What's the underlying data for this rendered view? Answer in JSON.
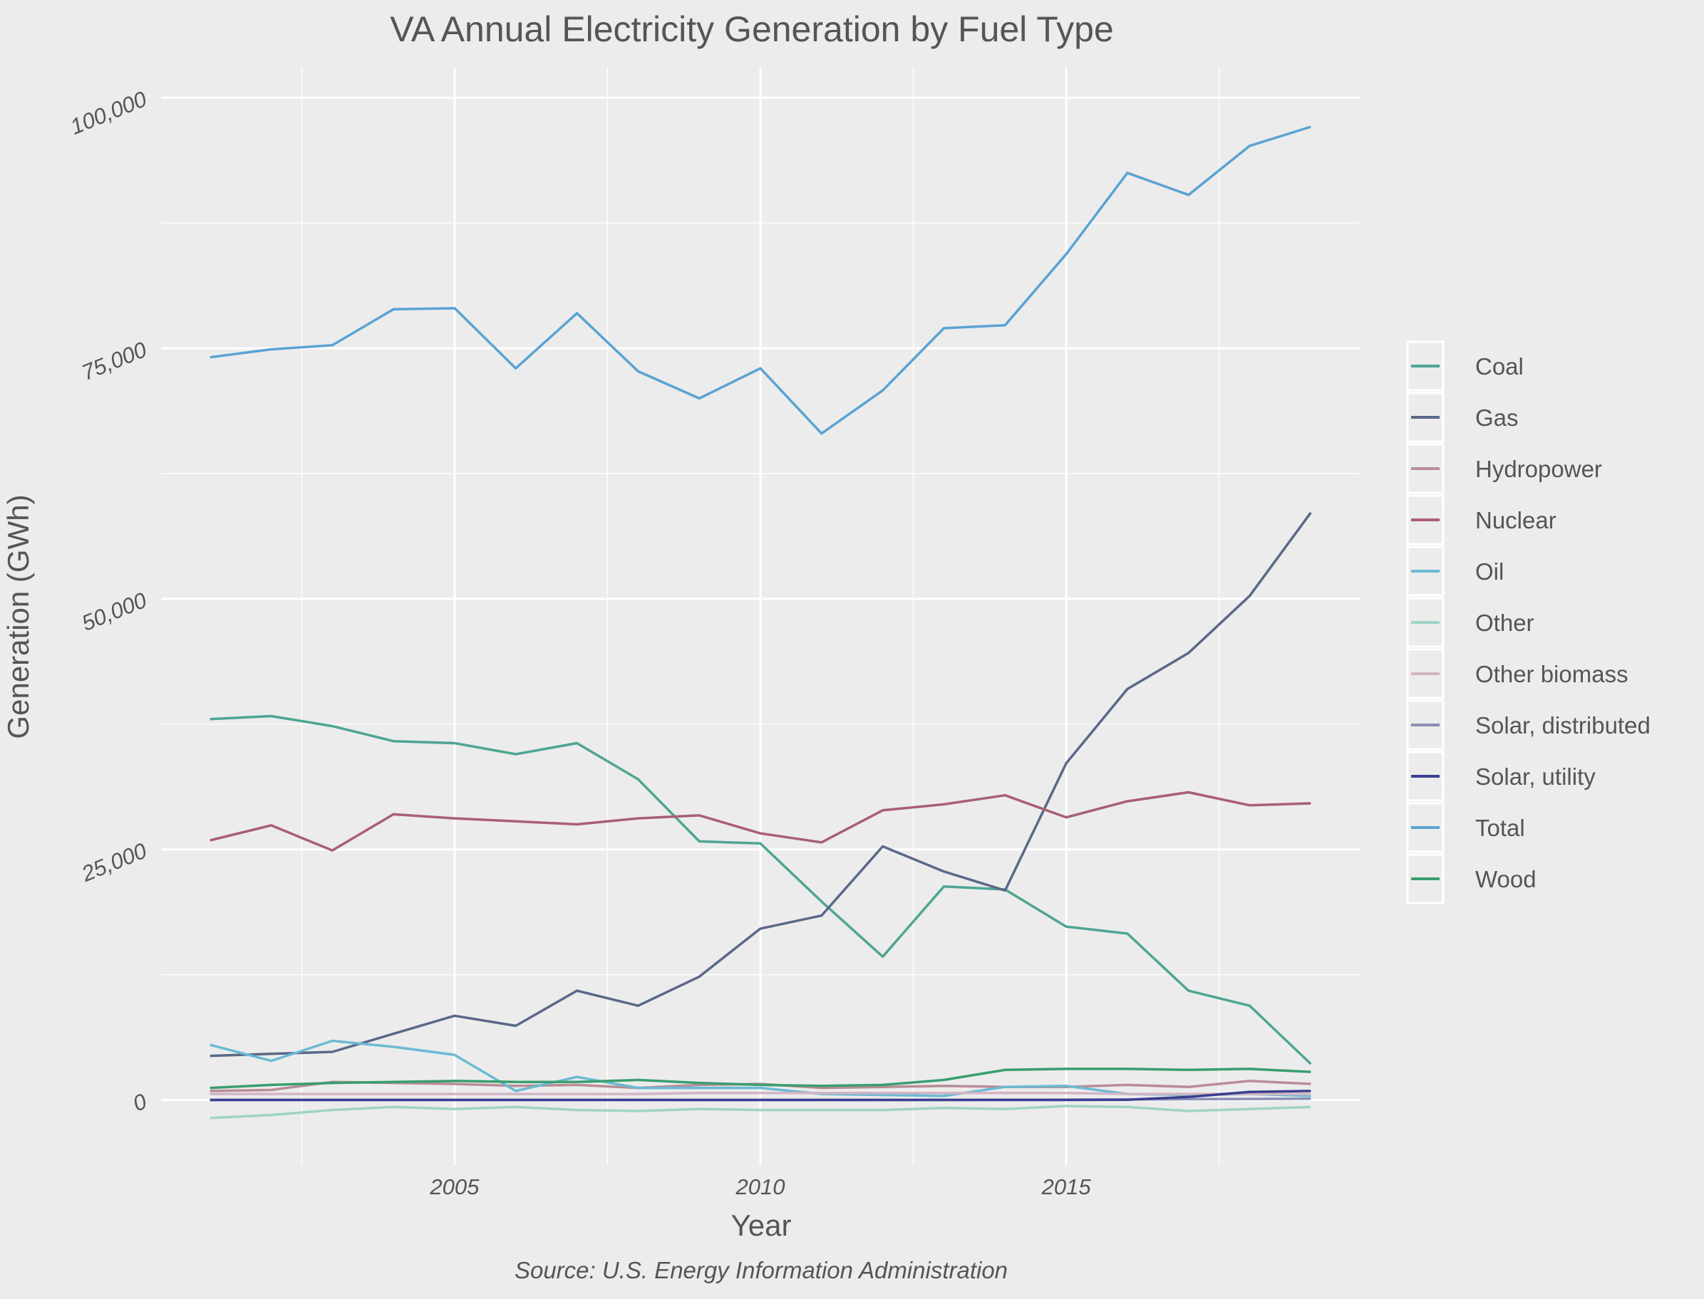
{
  "chart_data": {
    "type": "line",
    "title": "VA Annual Electricity Generation by Fuel Type",
    "xlabel": "Year",
    "ylabel": "Generation (GWh)",
    "caption": "Source: U.S. Energy Information Administration",
    "xlim": [
      2000.2,
      2019.8
    ],
    "ylim": [
      -6500,
      103000
    ],
    "x_ticks": [
      2005,
      2010,
      2015
    ],
    "y_ticks": [
      0,
      25000,
      50000,
      75000,
      100000
    ],
    "y_tick_labels": [
      "0",
      "25,000",
      "50,000",
      "75,000",
      "100,000"
    ],
    "grid": true,
    "legend_position": "right",
    "x": [
      2001,
      2002,
      2003,
      2004,
      2005,
      2006,
      2007,
      2008,
      2009,
      2010,
      2011,
      2012,
      2013,
      2014,
      2015,
      2016,
      2017,
      2018,
      2019
    ],
    "series": [
      {
        "name": "Coal",
        "color": "#4fa593",
        "values": [
          38000,
          38300,
          37300,
          35800,
          35600,
          34500,
          35600,
          32000,
          25800,
          25600,
          19800,
          14300,
          21300,
          21000,
          17300,
          16600,
          10900,
          9400,
          3600
        ]
      },
      {
        "name": "Gas",
        "color": "#5a6888",
        "values": [
          4400,
          4600,
          4800,
          6600,
          8400,
          7400,
          10900,
          9400,
          12300,
          17100,
          18400,
          25300,
          22800,
          20900,
          33600,
          41000,
          44600,
          50300,
          58600
        ]
      },
      {
        "name": "Hydropower",
        "color": "#b88d96",
        "values": [
          900,
          1000,
          1800,
          1700,
          1600,
          1400,
          1500,
          1200,
          1500,
          1600,
          1200,
          1300,
          1400,
          1300,
          1300,
          1500,
          1300,
          1900,
          1600
        ]
      },
      {
        "name": "Nuclear",
        "color": "#a85f72",
        "values": [
          25900,
          27400,
          24900,
          28500,
          28100,
          27800,
          27500,
          28100,
          28400,
          26600,
          25700,
          28900,
          29500,
          30400,
          28200,
          29800,
          30700,
          29400,
          29600
        ]
      },
      {
        "name": "Oil",
        "color": "#6bbad3",
        "values": [
          5500,
          3900,
          5900,
          5300,
          4500,
          900,
          2300,
          1200,
          1200,
          1200,
          600,
          500,
          400,
          1300,
          1400,
          600,
          500,
          600,
          400
        ]
      },
      {
        "name": "Other",
        "color": "#9fd4c8",
        "values": [
          -1800,
          -1500,
          -1000,
          -700,
          -900,
          -700,
          -1000,
          -1100,
          -900,
          -1000,
          -1000,
          -1000,
          -800,
          -900,
          -600,
          -700,
          -1100,
          -900,
          -700
        ]
      },
      {
        "name": "Other biomass",
        "color": "#d2b5c3",
        "values": [
          600,
          600,
          600,
          600,
          600,
          600,
          600,
          600,
          700,
          700,
          700,
          700,
          700,
          700,
          700,
          600,
          600,
          600,
          600
        ]
      },
      {
        "name": "Solar, distributed",
        "color": "#8a8fb5",
        "values": [
          0,
          0,
          0,
          0,
          0,
          0,
          0,
          0,
          0,
          0,
          0,
          0,
          10,
          20,
          30,
          50,
          80,
          100,
          130
        ]
      },
      {
        "name": "Solar, utility",
        "color": "#3a3f8f",
        "values": [
          0,
          0,
          0,
          0,
          0,
          0,
          0,
          0,
          0,
          0,
          0,
          0,
          0,
          0,
          0,
          20,
          300,
          800,
          900
        ]
      },
      {
        "name": "Total",
        "color": "#5aa3d3",
        "values": [
          74100,
          74900,
          75300,
          78900,
          79000,
          73000,
          78500,
          72700,
          70000,
          73000,
          66500,
          70800,
          77000,
          77300,
          84400,
          92500,
          90300,
          95200,
          97100
        ]
      },
      {
        "name": "Wood",
        "color": "#3a9e70",
        "values": [
          1200,
          1500,
          1700,
          1800,
          1900,
          1800,
          1800,
          2000,
          1700,
          1500,
          1400,
          1500,
          2000,
          3000,
          3100,
          3100,
          3000,
          3100,
          2800
        ]
      }
    ]
  }
}
